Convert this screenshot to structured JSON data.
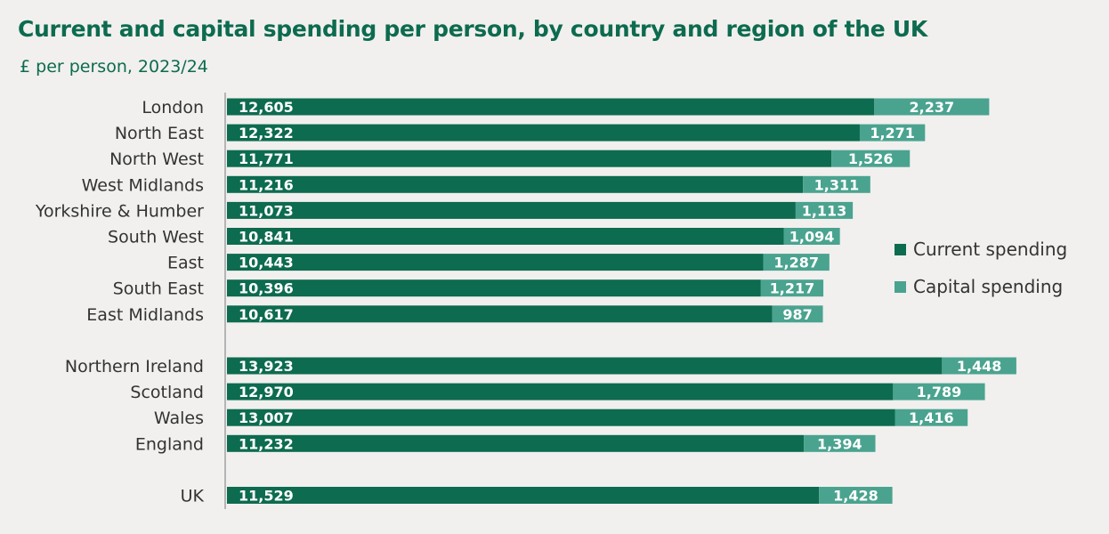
{
  "title": "Current and capital spending per person, by country and region of the UK",
  "subtitle": "£ per person, 2023/24",
  "colors": {
    "current": "#0d6b4f",
    "capital": "#4aa38f",
    "axis": "#b5b5b5"
  },
  "chart_data": {
    "type": "bar",
    "orientation": "horizontal",
    "stacked": true,
    "title": "Current and capital spending per person, by country and region of the UK",
    "subtitle": "£ per person, 2023/24",
    "legend_position": "right",
    "categories": [
      "London",
      "North East",
      "North West",
      "West Midlands",
      "Yorkshire & Humber",
      "South West",
      "East",
      "South East",
      "East Midlands",
      "Northern Ireland",
      "Scotland",
      "Wales",
      "England",
      "UK"
    ],
    "series": [
      {
        "name": "Current spending",
        "values": [
          12605,
          12322,
          11771,
          11216,
          11073,
          10841,
          10443,
          10396,
          10617,
          13923,
          12970,
          13007,
          11232,
          11529
        ]
      },
      {
        "name": "Capital spending",
        "values": [
          2237,
          1271,
          1526,
          1311,
          1113,
          1094,
          1287,
          1217,
          987,
          1448,
          1789,
          1416,
          1394,
          1428
        ]
      }
    ],
    "current_labels": [
      "12,605",
      "12,322",
      "11,771",
      "11,216",
      "11,073",
      "10,841",
      "10,443",
      "10,396",
      "10,617",
      "13,923",
      "12,970",
      "13,007",
      "11,232",
      "11,529"
    ],
    "capital_labels": [
      "2,237",
      "1,271",
      "1,526",
      "1,311",
      "1,113",
      "1,094",
      "1,287",
      "1,217",
      "987",
      "1,448",
      "1,789",
      "1,416",
      "1,394",
      "1,428"
    ],
    "groups": [
      [
        0,
        8
      ],
      [
        9,
        12
      ],
      [
        13,
        13
      ]
    ]
  }
}
